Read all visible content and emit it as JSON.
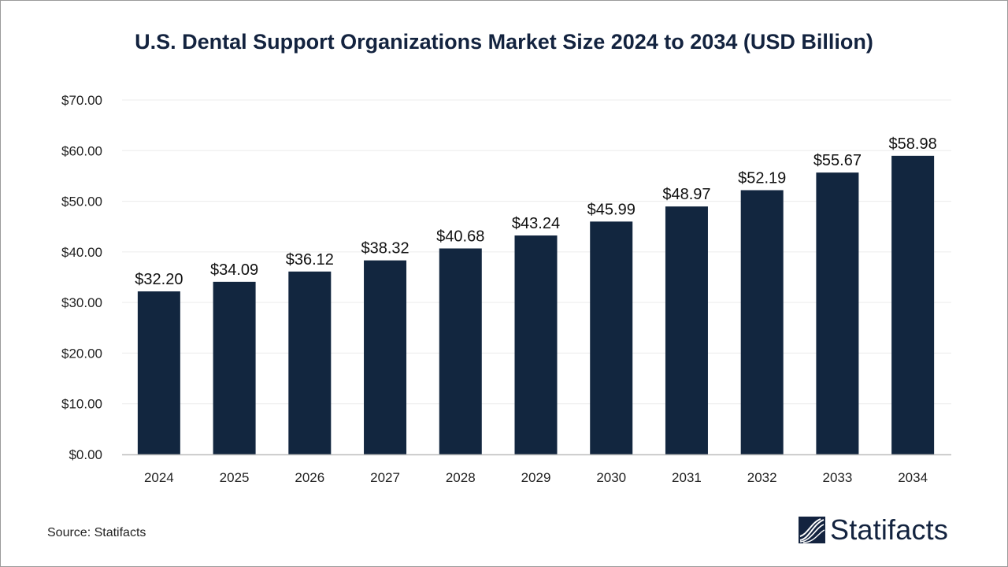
{
  "chart_data": {
    "type": "bar",
    "title": "U.S. Dental Support Organizations Market Size 2024 to 2034 (USD Billion)",
    "categories": [
      "2024",
      "2025",
      "2026",
      "2027",
      "2028",
      "2029",
      "2030",
      "2031",
      "2032",
      "2033",
      "2034"
    ],
    "values": [
      32.2,
      34.09,
      36.12,
      38.32,
      40.68,
      43.24,
      45.99,
      48.97,
      52.19,
      55.67,
      58.98
    ],
    "data_labels": [
      "$32.20",
      "$34.09",
      "$36.12",
      "$38.32",
      "$40.68",
      "$43.24",
      "$45.99",
      "$48.97",
      "$52.19",
      "$55.67",
      "$58.98"
    ],
    "y_ticks": [
      "$0.00",
      "$10.00",
      "$20.00",
      "$30.00",
      "$40.00",
      "$50.00",
      "$60.00",
      "$70.00"
    ],
    "ylim": [
      0,
      70
    ],
    "xlabel": "",
    "ylabel": "",
    "grid": true,
    "bar_color": "#12263f"
  },
  "source": "Source: Statifacts",
  "logo": {
    "text": "Statifacts",
    "icon": "statifacts-wave-logo-icon"
  }
}
